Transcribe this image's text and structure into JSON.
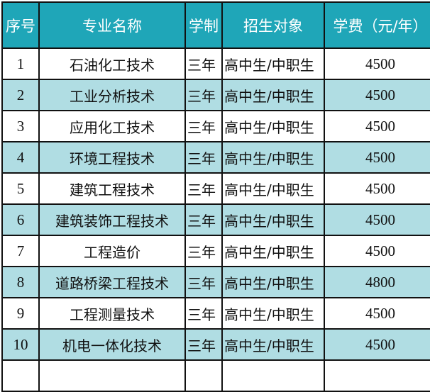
{
  "colors": {
    "header": "#1fa6b8",
    "stripe": "#b0dde3"
  },
  "headers": [
    "序号",
    "专业名称",
    "学制",
    "招生对象",
    "学费（元/年）"
  ],
  "rows": [
    [
      "1",
      "石油化工技术",
      "三年",
      "高中生/中职生",
      "4500"
    ],
    [
      "2",
      "工业分析技术",
      "三年",
      "高中生/中职生",
      "4500"
    ],
    [
      "3",
      "应用化工技术",
      "三年",
      "高中生/中职生",
      "4500"
    ],
    [
      "4",
      "环境工程技术",
      "三年",
      "高中生/中职生",
      "4500"
    ],
    [
      "5",
      "建筑工程技术",
      "三年",
      "高中生/中职生",
      "4500"
    ],
    [
      "6",
      "建筑装饰工程技术",
      "三年",
      "高中生/中职生",
      "4500"
    ],
    [
      "7",
      "工程造价",
      "三年",
      "高中生/中职生",
      "4500"
    ],
    [
      "8",
      "道路桥梁工程技术",
      "三年",
      "高中生/中职生",
      "4800"
    ],
    [
      "9",
      "工程测量技术",
      "三年",
      "高中生/中职生",
      "4500"
    ],
    [
      "10",
      "机电一体化技术",
      "三年",
      "高中生/中职生",
      "4500"
    ]
  ]
}
